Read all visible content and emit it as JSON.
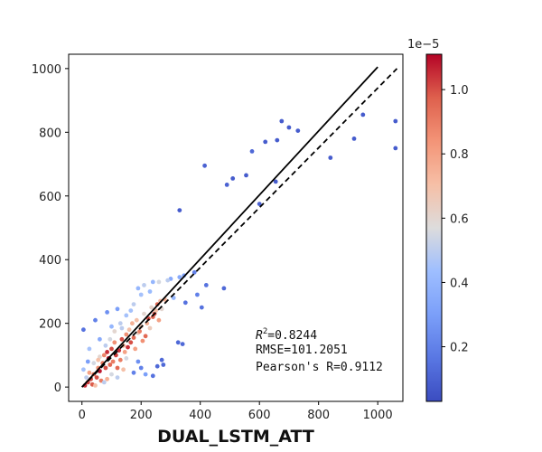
{
  "chart_data": {
    "type": "scatter",
    "xlabel": "DUAL_LSTM_ATT",
    "ylabel": "",
    "xlim": [
      -45,
      1085
    ],
    "ylim": [
      -45,
      1045
    ],
    "x_ticks": [
      0,
      200,
      400,
      600,
      800,
      1000
    ],
    "y_ticks": [
      0,
      200,
      400,
      600,
      800,
      1000
    ],
    "grid": false,
    "colorbar": {
      "cmap": "coolwarm",
      "range": [
        0.03,
        1.11
      ],
      "ticks": [
        0.2,
        0.4,
        0.6,
        0.8,
        1.0
      ],
      "tick_labels": [
        "0.2",
        "0.4",
        "0.6",
        "0.8",
        "1.0"
      ],
      "exponent_label": "1e−5"
    },
    "fit_line": {
      "style": "solid",
      "from": [
        0,
        0
      ],
      "to": [
        1000,
        1005
      ]
    },
    "identity_line": {
      "style": "dashed",
      "from": [
        0,
        0
      ],
      "to": [
        1065,
        1000
      ]
    },
    "stats": {
      "r2_symbol": "R",
      "r2_sup": "2",
      "r2_value": "=0.8244",
      "rmse": "RMSE=101.2051",
      "pearson": "Pearson's R=0.9112"
    },
    "points": [
      [
        5,
        180,
        0.15
      ],
      [
        45,
        210,
        0.2
      ],
      [
        85,
        235,
        0.25
      ],
      [
        120,
        245,
        0.3
      ],
      [
        190,
        310,
        0.4
      ],
      [
        210,
        320,
        0.5
      ],
      [
        240,
        330,
        0.4
      ],
      [
        300,
        340,
        0.35
      ],
      [
        330,
        345,
        0.35
      ],
      [
        380,
        360,
        0.2
      ],
      [
        390,
        290,
        0.2
      ],
      [
        405,
        250,
        0.15
      ],
      [
        420,
        320,
        0.15
      ],
      [
        480,
        310,
        0.12
      ],
      [
        340,
        135,
        0.12
      ],
      [
        325,
        140,
        0.12
      ],
      [
        270,
        85,
        0.12
      ],
      [
        255,
        65,
        0.12
      ],
      [
        240,
        35,
        0.15
      ],
      [
        275,
        70,
        0.12
      ],
      [
        330,
        555,
        0.08
      ],
      [
        415,
        695,
        0.1
      ],
      [
        490,
        635,
        0.1
      ],
      [
        510,
        655,
        0.08
      ],
      [
        555,
        665,
        0.08
      ],
      [
        575,
        740,
        0.12
      ],
      [
        600,
        575,
        0.1
      ],
      [
        620,
        770,
        0.08
      ],
      [
        655,
        645,
        0.08
      ],
      [
        660,
        775,
        0.08
      ],
      [
        675,
        835,
        0.08
      ],
      [
        700,
        815,
        0.08
      ],
      [
        730,
        805,
        0.08
      ],
      [
        840,
        720,
        0.08
      ],
      [
        920,
        780,
        0.08
      ],
      [
        950,
        855,
        0.08
      ],
      [
        1060,
        835,
        0.08
      ],
      [
        1060,
        750,
        0.08
      ],
      [
        10,
        5,
        1.05
      ],
      [
        20,
        15,
        1.02
      ],
      [
        30,
        25,
        1.0
      ],
      [
        35,
        8,
        0.98
      ],
      [
        40,
        40,
        0.95
      ],
      [
        50,
        30,
        1.0
      ],
      [
        55,
        60,
        0.85
      ],
      [
        60,
        50,
        1.08
      ],
      [
        65,
        20,
        0.9
      ],
      [
        70,
        75,
        0.92
      ],
      [
        75,
        100,
        0.88
      ],
      [
        80,
        60,
        1.0
      ],
      [
        85,
        110,
        1.05
      ],
      [
        90,
        90,
        1.1
      ],
      [
        95,
        70,
        0.95
      ],
      [
        100,
        120,
        1.0
      ],
      [
        105,
        80,
        0.9
      ],
      [
        110,
        140,
        0.85
      ],
      [
        115,
        100,
        1.02
      ],
      [
        120,
        60,
        0.95
      ],
      [
        125,
        115,
        1.05
      ],
      [
        130,
        85,
        0.9
      ],
      [
        135,
        150,
        1.0
      ],
      [
        140,
        130,
        0.75
      ],
      [
        145,
        110,
        0.8
      ],
      [
        150,
        165,
        0.85
      ],
      [
        155,
        125,
        1.05
      ],
      [
        160,
        180,
        0.7
      ],
      [
        165,
        140,
        1.0
      ],
      [
        170,
        200,
        0.75
      ],
      [
        175,
        155,
        0.95
      ],
      [
        180,
        120,
        0.8
      ],
      [
        185,
        210,
        0.7
      ],
      [
        190,
        170,
        0.65
      ],
      [
        195,
        175,
        0.9
      ],
      [
        200,
        190,
        0.68
      ],
      [
        205,
        145,
        0.85
      ],
      [
        210,
        230,
        0.6
      ],
      [
        215,
        160,
        0.95
      ],
      [
        220,
        200,
        0.75
      ],
      [
        225,
        215,
        1.0
      ],
      [
        230,
        185,
        0.65
      ],
      [
        235,
        250,
        0.62
      ],
      [
        240,
        220,
        0.95
      ],
      [
        245,
        230,
        1.0
      ],
      [
        250,
        240,
        0.7
      ],
      [
        255,
        260,
        0.95
      ],
      [
        260,
        210,
        0.8
      ],
      [
        265,
        270,
        0.72
      ],
      [
        270,
        245,
        0.6
      ],
      [
        280,
        275,
        0.75
      ],
      [
        40,
        75,
        0.55
      ],
      [
        60,
        95,
        0.6
      ],
      [
        80,
        130,
        0.5
      ],
      [
        95,
        150,
        0.55
      ],
      [
        110,
        175,
        0.6
      ],
      [
        130,
        200,
        0.5
      ],
      [
        150,
        225,
        0.45
      ],
      [
        165,
        240,
        0.45
      ],
      [
        120,
        30,
        0.5
      ],
      [
        100,
        40,
        0.55
      ],
      [
        75,
        15,
        0.5
      ],
      [
        150,
        90,
        0.55
      ],
      [
        20,
        80,
        0.3
      ],
      [
        25,
        120,
        0.45
      ],
      [
        60,
        150,
        0.35
      ],
      [
        100,
        190,
        0.4
      ],
      [
        135,
        185,
        0.5
      ],
      [
        175,
        260,
        0.5
      ],
      [
        200,
        290,
        0.45
      ],
      [
        230,
        300,
        0.42
      ],
      [
        260,
        330,
        0.55
      ],
      [
        290,
        335,
        0.5
      ],
      [
        310,
        280,
        0.4
      ],
      [
        345,
        350,
        0.3
      ],
      [
        350,
        265,
        0.15
      ],
      [
        175,
        45,
        0.2
      ],
      [
        200,
        60,
        0.2
      ],
      [
        190,
        80,
        0.25
      ],
      [
        215,
        40,
        0.3
      ],
      [
        15,
        30,
        0.5
      ],
      [
        5,
        55,
        0.45
      ],
      [
        45,
        5,
        0.7
      ],
      [
        25,
        45,
        0.8
      ],
      [
        55,
        85,
        0.7
      ],
      [
        85,
        25,
        0.75
      ],
      [
        140,
        55,
        0.7
      ]
    ]
  }
}
